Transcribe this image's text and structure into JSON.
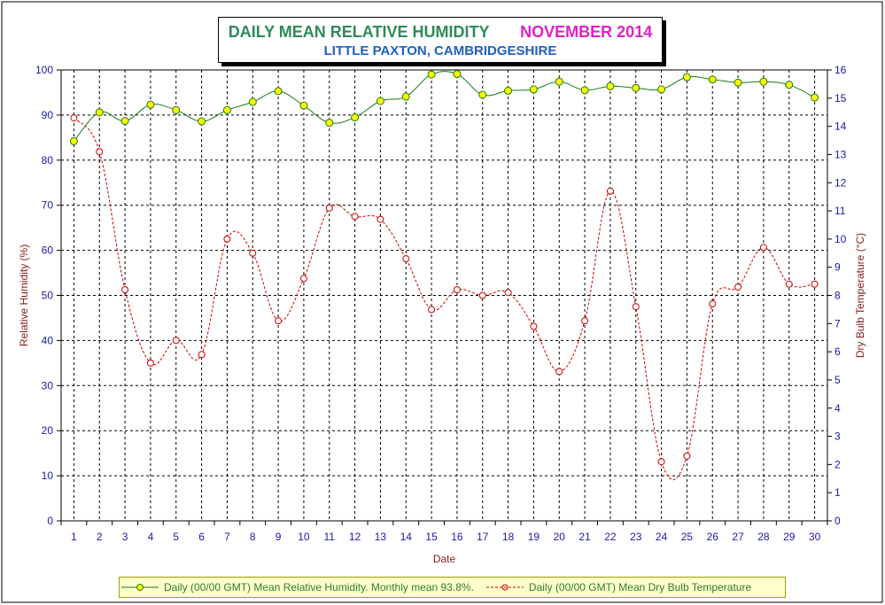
{
  "chart_data": {
    "type": "line",
    "title": "DAILY MEAN RELATIVE HUMIDITY",
    "title_month": "NOVEMBER 2014",
    "subtitle": "LITTLE PAXTON, CAMBRIDGESHIRE",
    "xlabel": "Date",
    "ylabel_left": "Relative Humidity (%)",
    "ylabel_right": "Dry Bulb Temperature (°C)",
    "x": [
      1,
      2,
      3,
      4,
      5,
      6,
      7,
      8,
      9,
      10,
      11,
      12,
      13,
      14,
      15,
      16,
      17,
      18,
      19,
      20,
      21,
      22,
      23,
      24,
      25,
      26,
      27,
      28,
      29,
      30
    ],
    "ylim_left": [
      0,
      100
    ],
    "yticks_left": [
      0,
      10,
      20,
      30,
      40,
      50,
      60,
      70,
      80,
      90,
      100
    ],
    "ylim_right": [
      0,
      16
    ],
    "yticks_right": [
      0,
      1,
      2,
      3,
      4,
      5,
      6,
      7,
      8,
      9,
      10,
      11,
      12,
      13,
      14,
      15,
      16
    ],
    "grid": true,
    "legend_position": "bottom",
    "series": [
      {
        "name": "Daily (00/00 GMT) Mean Relative Humidity. Monthly mean 93.8%.",
        "axis": "left",
        "color": "#1a7a1a",
        "marker_color": "#ffff00",
        "style": "solid",
        "values": [
          84.2,
          90.6,
          88.7,
          92.3,
          91.1,
          88.6,
          91.1,
          92.9,
          95.3,
          92.1,
          88.3,
          89.5,
          93.1,
          94.1,
          99.0,
          99.1,
          94.5,
          95.4,
          95.7,
          97.4,
          95.5,
          96.4,
          96.0,
          95.7,
          98.4,
          97.9,
          97.2,
          97.4,
          96.7,
          93.9
        ]
      },
      {
        "name": "Daily (00/00 GMT) Mean Dry Bulb Temperature",
        "axis": "right",
        "color": "#cc0000",
        "marker_color": "#cc0000",
        "style": "dashed",
        "values": [
          14.3,
          13.1,
          8.2,
          5.6,
          6.4,
          5.9,
          10.0,
          9.5,
          7.1,
          8.6,
          11.1,
          10.8,
          10.7,
          9.3,
          7.5,
          8.2,
          8.0,
          8.1,
          6.9,
          5.3,
          7.1,
          11.7,
          7.6,
          2.1,
          2.3,
          7.7,
          8.3,
          9.7,
          8.4,
          8.4
        ]
      }
    ]
  }
}
